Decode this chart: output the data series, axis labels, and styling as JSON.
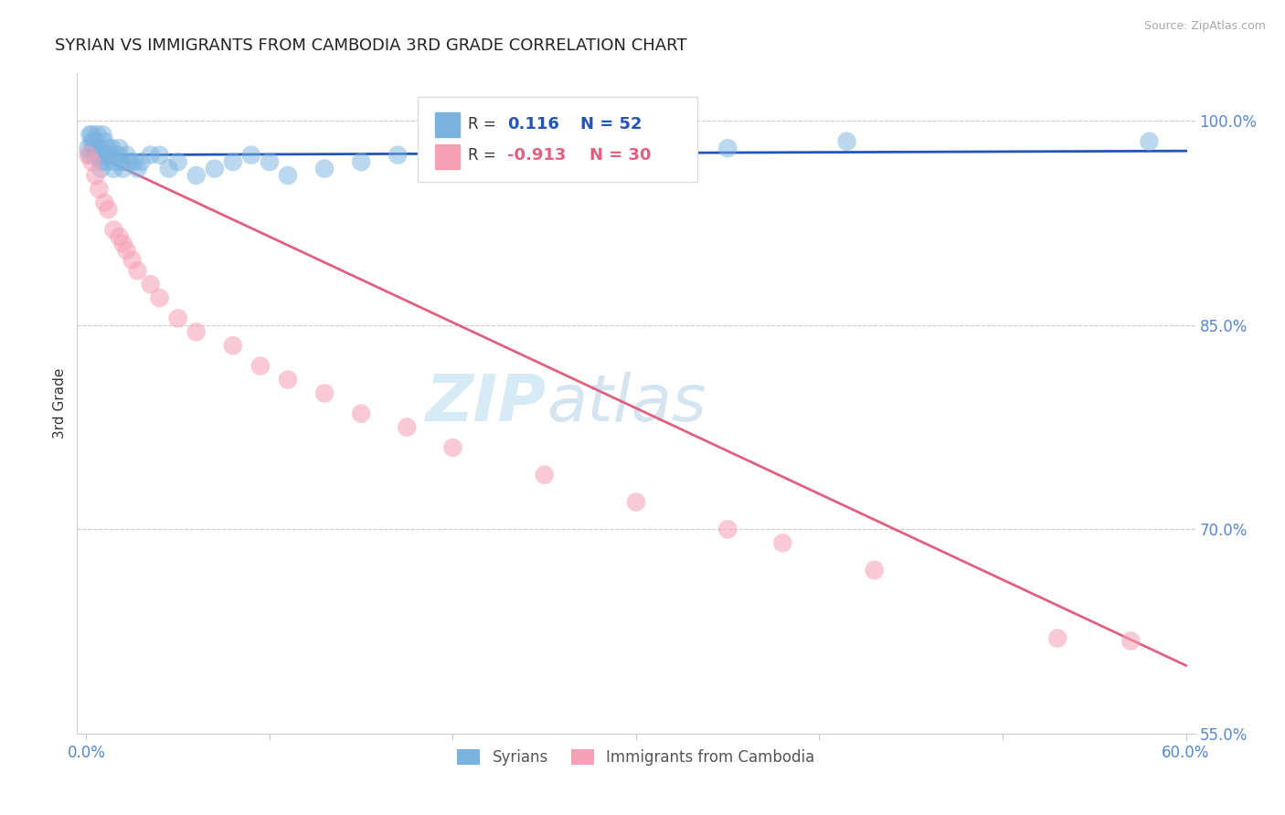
{
  "title": "SYRIAN VS IMMIGRANTS FROM CAMBODIA 3RD GRADE CORRELATION CHART",
  "source": "Source: ZipAtlas.com",
  "ylabel": "3rd Grade",
  "xlim": [
    -0.005,
    0.605
  ],
  "ylim": [
    0.575,
    1.035
  ],
  "yticks": [
    0.55,
    0.7,
    0.85,
    1.0
  ],
  "ytick_labels": [
    "55.0%",
    "70.0%",
    "85.0%",
    "100.0%"
  ],
  "xticks": [
    0.0,
    0.1,
    0.2,
    0.3,
    0.4,
    0.5,
    0.6
  ],
  "xtick_labels": [
    "0.0%",
    "",
    "",
    "",
    "",
    "",
    "60.0%"
  ],
  "blue_R": 0.116,
  "blue_N": 52,
  "pink_R": -0.913,
  "pink_N": 30,
  "blue_color": "#7ab3e0",
  "pink_color": "#f5a0b5",
  "blue_line_color": "#2255bb",
  "pink_line_color": "#e06080",
  "grid_color": "#cccccc",
  "background_color": "#ffffff",
  "title_color": "#222222",
  "axis_color": "#5588cc",
  "watermark_color": "#d0e8f5",
  "blue_scatter_x": [
    0.001,
    0.002,
    0.002,
    0.003,
    0.003,
    0.004,
    0.005,
    0.005,
    0.006,
    0.006,
    0.007,
    0.007,
    0.008,
    0.008,
    0.009,
    0.01,
    0.01,
    0.011,
    0.012,
    0.013,
    0.014,
    0.015,
    0.016,
    0.017,
    0.018,
    0.019,
    0.02,
    0.022,
    0.024,
    0.026,
    0.028,
    0.03,
    0.035,
    0.04,
    0.045,
    0.05,
    0.06,
    0.07,
    0.08,
    0.09,
    0.1,
    0.11,
    0.13,
    0.15,
    0.17,
    0.2,
    0.23,
    0.26,
    0.3,
    0.35,
    0.415,
    0.58
  ],
  "blue_scatter_y": [
    0.98,
    0.99,
    0.975,
    0.985,
    0.99,
    0.98,
    0.975,
    0.985,
    0.98,
    0.99,
    0.975,
    0.98,
    0.97,
    0.965,
    0.99,
    0.985,
    0.975,
    0.97,
    0.98,
    0.975,
    0.98,
    0.965,
    0.97,
    0.975,
    0.98,
    0.97,
    0.965,
    0.975,
    0.97,
    0.97,
    0.965,
    0.97,
    0.975,
    0.975,
    0.965,
    0.97,
    0.96,
    0.965,
    0.97,
    0.975,
    0.97,
    0.96,
    0.965,
    0.97,
    0.975,
    0.98,
    0.975,
    0.97,
    0.975,
    0.98,
    0.985,
    0.985
  ],
  "pink_scatter_x": [
    0.001,
    0.003,
    0.005,
    0.007,
    0.01,
    0.012,
    0.015,
    0.018,
    0.02,
    0.022,
    0.025,
    0.028,
    0.035,
    0.04,
    0.05,
    0.06,
    0.08,
    0.095,
    0.11,
    0.13,
    0.15,
    0.175,
    0.2,
    0.25,
    0.3,
    0.35,
    0.38,
    0.43,
    0.53,
    0.57
  ],
  "pink_scatter_y": [
    0.975,
    0.97,
    0.96,
    0.95,
    0.94,
    0.935,
    0.92,
    0.915,
    0.91,
    0.905,
    0.898,
    0.89,
    0.88,
    0.87,
    0.855,
    0.845,
    0.835,
    0.82,
    0.81,
    0.8,
    0.785,
    0.775,
    0.76,
    0.74,
    0.72,
    0.7,
    0.69,
    0.67,
    0.62,
    0.618
  ],
  "blue_line_x": [
    0.0,
    0.6
  ],
  "blue_line_y": [
    0.975,
    0.978
  ],
  "pink_line_x": [
    0.0,
    0.6
  ],
  "pink_line_y": [
    0.978,
    0.6
  ]
}
